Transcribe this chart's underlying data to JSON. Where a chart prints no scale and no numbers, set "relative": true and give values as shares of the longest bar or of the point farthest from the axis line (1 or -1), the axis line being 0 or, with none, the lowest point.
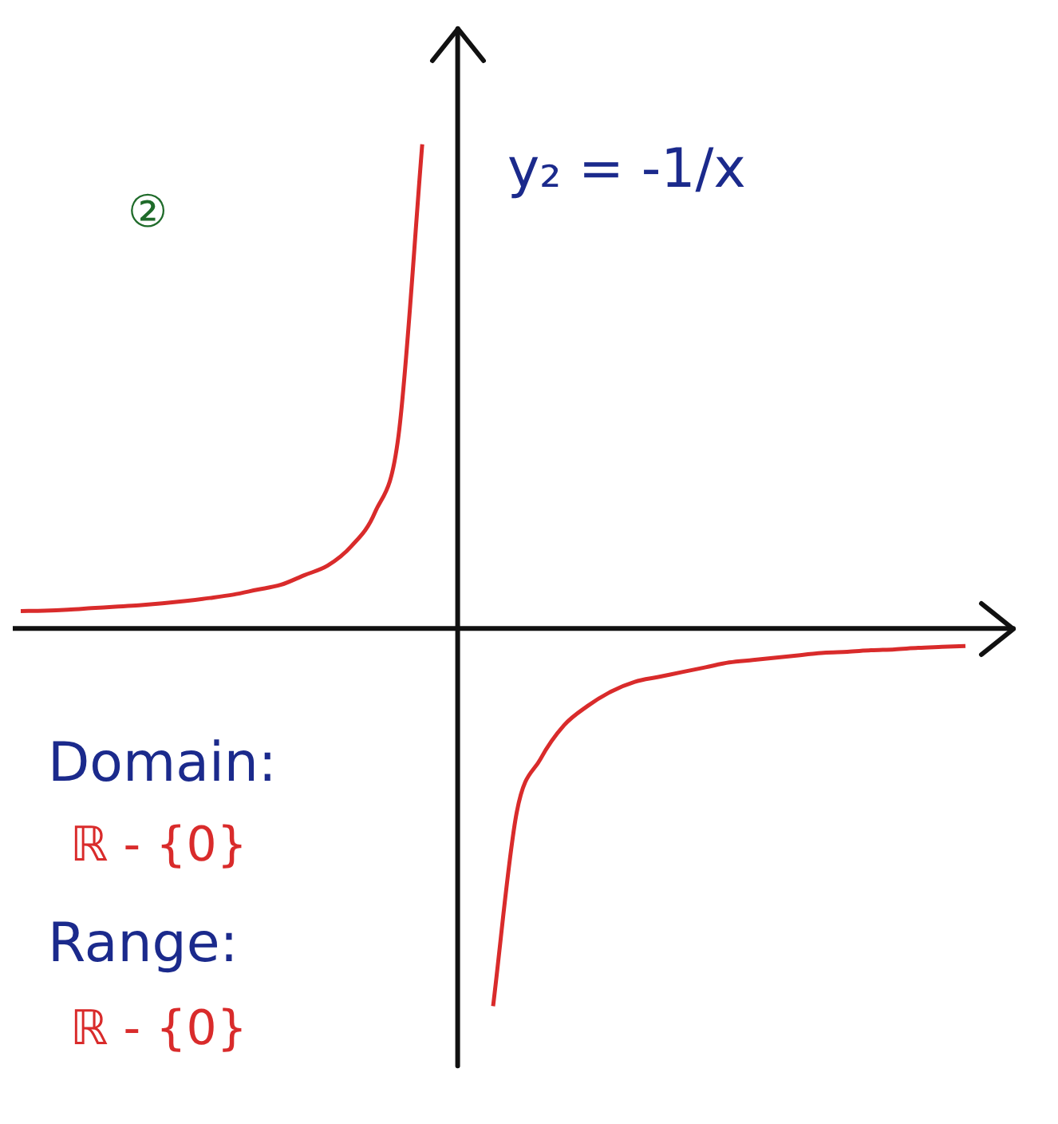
{
  "chart_data": {
    "type": "line",
    "relative": true,
    "legend": false,
    "grid": false,
    "marker": "none",
    "line_style": "solid",
    "categories": [
      null,
      null,
      null,
      null,
      null,
      null,
      null,
      null,
      null,
      null,
      null,
      null,
      null,
      null,
      null,
      null,
      null,
      null,
      null,
      null,
      null,
      null,
      null,
      null,
      null,
      null,
      null,
      null,
      null,
      null,
      null,
      null,
      null,
      null,
      null,
      null,
      null,
      null,
      null,
      null,
      null
    ],
    "series": [
      {
        "color": "#d92b2b",
        "values": [
          0.036,
          0.037,
          0.039,
          0.042,
          0.045,
          0.048,
          0.052,
          0.057,
          0.063,
          0.07,
          0.08,
          0.09,
          0.11,
          0.13,
          0.17,
          0.24,
          0.4,
          1,
          null,
          null,
          null,
          null,
          null,
          null,
          null,
          null,
          null,
          null,
          null,
          null,
          null,
          null,
          null,
          null,
          null,
          null,
          null,
          null,
          null,
          null,
          null
        ]
      },
      {
        "color": "#d92b2b",
        "values": [
          null,
          null,
          null,
          null,
          null,
          null,
          null,
          null,
          null,
          null,
          null,
          null,
          null,
          null,
          null,
          null,
          null,
          null,
          null,
          null,
          -0.78,
          -0.38,
          -0.27,
          -0.2,
          -0.16,
          -0.13,
          -0.11,
          -0.1,
          -0.09,
          -0.08,
          -0.07,
          -0.065,
          -0.06,
          -0.055,
          -0.05,
          -0.048,
          -0.045,
          -0.043,
          -0.04,
          -0.038,
          -0.036
        ]
      }
    ],
    "annotations": [
      "②",
      "y₂ = -1/x",
      "Domain:",
      "ℝ - {0}",
      "Range:",
      "ℝ - {0}"
    ]
  }
}
